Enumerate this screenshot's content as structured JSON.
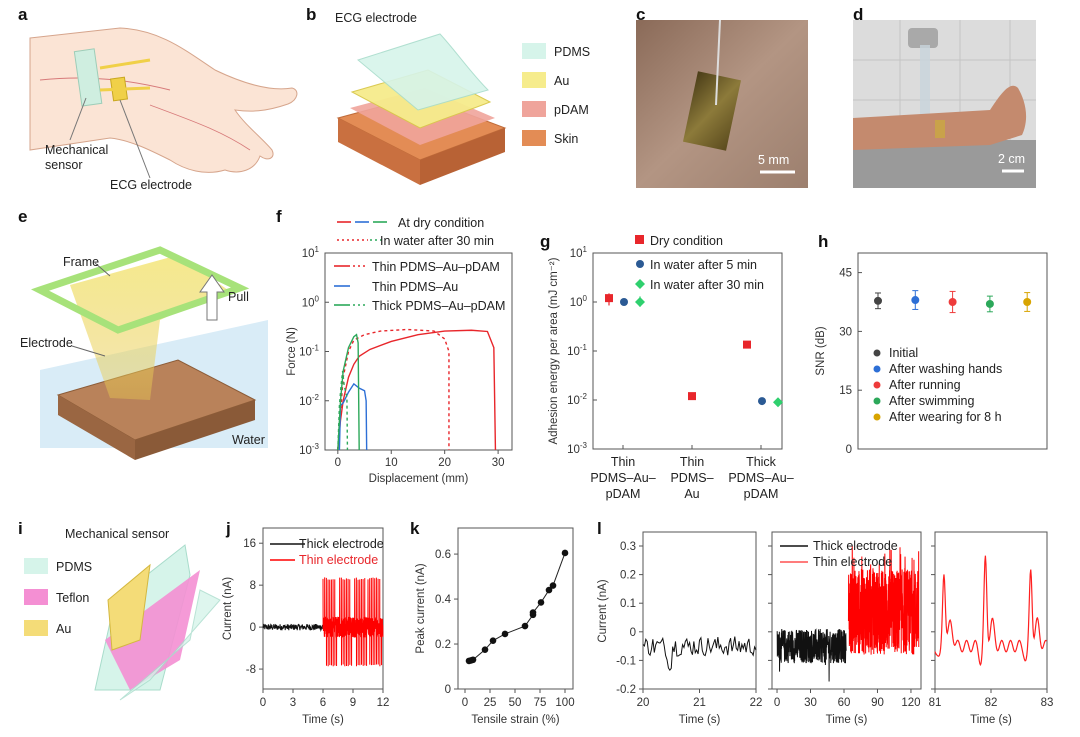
{
  "panel_labels": {
    "a": "a",
    "b": "b",
    "c": "c",
    "d": "d",
    "e": "e",
    "f": "f",
    "g": "g",
    "h": "h",
    "i": "i",
    "j": "j",
    "k": "k",
    "l": "l"
  },
  "a": {
    "sensor_line1": "Mechanical",
    "sensor_line2": "sensor",
    "ecg": "ECG electrode"
  },
  "b": {
    "title": "ECG electrode",
    "legend": [
      {
        "label": "PDMS",
        "color": "#d6f4ea"
      },
      {
        "label": "Au",
        "color": "#f6ec8c"
      },
      {
        "label": "pDAM",
        "color": "#efa49b"
      },
      {
        "label": "Skin",
        "color": "#e38c55"
      }
    ]
  },
  "c": {
    "scale": "5 mm"
  },
  "d": {
    "scale": "2 cm"
  },
  "e": {
    "frame": "Frame",
    "pull": "Pull",
    "electrode": "Electrode",
    "water": "Water"
  },
  "i": {
    "title": "Mechanical sensor",
    "legend": [
      {
        "label": "PDMS",
        "color": "#d6f4ea"
      },
      {
        "label": "Teflon",
        "color": "#f48fd3"
      },
      {
        "label": "Au",
        "color": "#f4dc78"
      }
    ]
  },
  "colors": {
    "red": "#e8262b",
    "blue": "#2d6fd6",
    "green": "#2ca85a",
    "black": "#111111"
  },
  "chart_data": [
    {
      "panel": "f",
      "type": "line",
      "xlabel": "Displacement (mm)",
      "ylabel": "Force (N)",
      "yscale": "log",
      "xlim": [
        -2.4,
        32.6
      ],
      "ylim": [
        0.001,
        10
      ],
      "xticks": [
        "0",
        "10",
        "20",
        "30"
      ],
      "xtick_values": [
        0,
        10,
        20,
        30
      ],
      "yticks": [
        {
          "base": "10",
          "exp": "-3"
        },
        {
          "base": "10",
          "exp": "-2"
        },
        {
          "base": "10",
          "exp": "-1"
        },
        {
          "base": "10",
          "exp": "0"
        },
        {
          "base": "10",
          "exp": "1"
        }
      ],
      "legend": {
        "style_dry": "At dry condition",
        "style_water": "In water after 30 min",
        "thin_au_pdam": "Thin PDMS–Au–pDAM",
        "thin_au": "Thin PDMS–Au",
        "thick_au_pdam": "Thick PDMS–Au–pDAM"
      },
      "series": [
        {
          "sample": "Thin PDMS–Au–pDAM",
          "condition": "dry",
          "color": "#e8262b",
          "dash": false,
          "points": [
            [
              0,
              0.001
            ],
            [
              0.5,
              0.004
            ],
            [
              1,
              0.01
            ],
            [
              2,
              0.03
            ],
            [
              3,
              0.055
            ],
            [
              4,
              0.08
            ],
            [
              6,
              0.11
            ],
            [
              10,
              0.16
            ],
            [
              15,
              0.22
            ],
            [
              20,
              0.26
            ],
            [
              25,
              0.27
            ],
            [
              28,
              0.255
            ],
            [
              29.2,
              0.12
            ],
            [
              29.5,
              0.001
            ]
          ]
        },
        {
          "sample": "Thin PDMS–Au–pDAM",
          "condition": "water 30 min",
          "color": "#e8262b",
          "dash": true,
          "points": [
            [
              0,
              0.001
            ],
            [
              1,
              0.03
            ],
            [
              2,
              0.1
            ],
            [
              3,
              0.17
            ],
            [
              5,
              0.22
            ],
            [
              8,
              0.26
            ],
            [
              13,
              0.28
            ],
            [
              18,
              0.26
            ],
            [
              20,
              0.18
            ],
            [
              20.8,
              0.1
            ],
            [
              20.8,
              0.001
            ]
          ]
        },
        {
          "sample": "Thin PDMS–Au",
          "condition": "dry",
          "color": "#2d6fd6",
          "dash": false,
          "points": [
            [
              0.3,
              0.001
            ],
            [
              0.5,
              0.008
            ],
            [
              1,
              0.009
            ],
            [
              2,
              0.015
            ],
            [
              3,
              0.022
            ],
            [
              4,
              0.018
            ],
            [
              5,
              0.016
            ],
            [
              5.3,
              0.01
            ],
            [
              5.4,
              0.001
            ]
          ]
        },
        {
          "sample": "Thick PDMS–Au–pDAM",
          "condition": "dry",
          "color": "#2ca85a",
          "dash": false,
          "points": [
            [
              0,
              0.001
            ],
            [
              0.5,
              0.01
            ],
            [
              1,
              0.04
            ],
            [
              2,
              0.12
            ],
            [
              3,
              0.2
            ],
            [
              3.5,
              0.22
            ],
            [
              3.8,
              0.15
            ],
            [
              4,
              0.001
            ]
          ]
        },
        {
          "sample": "Thick PDMS–Au–pDAM",
          "condition": "water 30 min",
          "color": "#2ca85a",
          "dash": true,
          "points": [
            [
              0,
              0.001
            ],
            [
              0.3,
              0.008
            ],
            [
              0.6,
              0.02
            ],
            [
              0.9,
              0.04
            ],
            [
              1.2,
              0.02
            ],
            [
              1.7,
              0.012
            ],
            [
              1.8,
              0.001
            ]
          ]
        }
      ]
    },
    {
      "panel": "g",
      "type": "scatter",
      "ylabel": "Adhesion energy per area (mJ cm⁻²)",
      "yscale": "log",
      "ylim": [
        0.001,
        10
      ],
      "yticks": [
        {
          "base": "10",
          "exp": "-3"
        },
        {
          "base": "10",
          "exp": "-2"
        },
        {
          "base": "10",
          "exp": "-1"
        },
        {
          "base": "10",
          "exp": "0"
        },
        {
          "base": "10",
          "exp": "1"
        }
      ],
      "categories": [
        [
          "Thin",
          "PDMS–Au–",
          "pDAM"
        ],
        [
          "Thin",
          "PDMS–",
          "Au"
        ],
        [
          "Thick",
          "PDMS–Au–",
          "pDAM"
        ]
      ],
      "series": [
        {
          "name": "Dry condition",
          "color": "#e8262b",
          "marker": "square",
          "values": [
            1.2,
            0.012,
            0.135
          ],
          "err_low": [
            0.85,
            0.011,
            0.12
          ],
          "err_high": [
            1.5,
            0.013,
            0.15
          ]
        },
        {
          "name": "In water after 5 min",
          "color": "#2b5a94",
          "marker": "circle",
          "values": [
            1.0,
            null,
            0.0095
          ],
          "err_low": [
            0.95,
            null,
            0.008
          ],
          "err_high": [
            1.05,
            null,
            0.011
          ]
        },
        {
          "name": "In water after 30 min",
          "color": "#2fd06e",
          "marker": "diamond",
          "values": [
            1.0,
            null,
            0.009
          ],
          "err_low": [
            0.8,
            null,
            0.0085
          ],
          "err_high": [
            1.3,
            null,
            0.0095
          ]
        }
      ]
    },
    {
      "panel": "h",
      "type": "scatter",
      "ylabel": "SNR (dB)",
      "ylim": [
        0,
        50
      ],
      "yticks": [
        "0",
        "15",
        "30",
        "45"
      ],
      "ytick_values": [
        0,
        15,
        30,
        45
      ],
      "series": [
        {
          "name": "Initial",
          "color": "#444444",
          "value": 37.8,
          "err": 2
        },
        {
          "name": "After washing hands",
          "color": "#2d6fd6",
          "value": 38,
          "err": 2.4
        },
        {
          "name": "After running",
          "color": "#ee3b3b",
          "value": 37.5,
          "err": 2.7
        },
        {
          "name": "After swimming",
          "color": "#2ca85a",
          "value": 37,
          "err": 2
        },
        {
          "name": "After wearing for 8 h",
          "color": "#d8a400",
          "value": 37.5,
          "err": 2.4
        }
      ]
    },
    {
      "panel": "j",
      "type": "line",
      "xlabel": "Time (s)",
      "ylabel": "Current (nA)",
      "xlim": [
        0,
        12
      ],
      "ylim": [
        -11.8,
        18.9
      ],
      "xticks": [
        "0",
        "3",
        "6",
        "9",
        "12"
      ],
      "xtick_values": [
        0,
        3,
        6,
        9,
        12
      ],
      "yticks": [
        "-8",
        "0",
        "8",
        "16"
      ],
      "ytick_values": [
        -8,
        0,
        8,
        16
      ],
      "series": [
        {
          "name": "Thick electrode",
          "color": "#111111",
          "t_range": [
            0,
            6
          ],
          "amplitude": [
            -0.6,
            0.6
          ]
        },
        {
          "name": "Thin electrode",
          "color": "#ff0000",
          "t_range": [
            6,
            12
          ],
          "peak_max": 9.5,
          "peak_min": -7.5,
          "band": [
            -2,
            2
          ],
          "pulse_rate_hz": 6
        }
      ]
    },
    {
      "panel": "k",
      "type": "line",
      "xlabel": "Tensile strain (%)",
      "ylabel": "Peak current (nA)",
      "xlim": [
        -7,
        108
      ],
      "ylim": [
        0,
        0.716
      ],
      "xticks": [
        "0",
        "25",
        "50",
        "75",
        "100"
      ],
      "xtick_values": [
        0,
        25,
        50,
        75,
        100
      ],
      "yticks": [
        "0",
        "0.2",
        "0.4",
        "0.6"
      ],
      "ytick_values": [
        0,
        0.2,
        0.4,
        0.6
      ],
      "x": [
        4,
        6,
        8,
        20,
        28,
        40,
        60,
        68,
        68,
        76,
        84,
        88,
        100
      ],
      "y": [
        0.125,
        0.127,
        0.13,
        0.175,
        0.215,
        0.245,
        0.28,
        0.33,
        0.34,
        0.385,
        0.44,
        0.46,
        0.605
      ]
    },
    {
      "panel": "l",
      "type": "line",
      "ylabel": "Current (nA)",
      "ylim": [
        -0.2,
        0.349
      ],
      "yticks": [
        "-0.2",
        "-0.1",
        "0",
        "0.1",
        "0.2",
        "0.3"
      ],
      "ytick_values": [
        -0.2,
        -0.1,
        0,
        0.1,
        0.2,
        0.3
      ],
      "subplots": [
        {
          "xlabel": "Time (s)",
          "xlim": [
            20,
            22
          ],
          "xticks": [
            "20",
            "21",
            "22"
          ],
          "xtick_values": [
            20,
            21,
            22
          ],
          "series": [
            {
              "color": "#111111",
              "mean": -0.05,
              "range": [
                -0.12,
                -0.01
              ]
            }
          ]
        },
        {
          "xlabel": "Time (s)",
          "xlim": [
            -4.5,
            129
          ],
          "xticks": [
            "0",
            "30",
            "60",
            "90",
            "120"
          ],
          "xtick_values": [
            0,
            30,
            60,
            90,
            120
          ],
          "legend": [
            "Thick electrode",
            "Thin electrode"
          ],
          "series": [
            {
              "name": "Thick electrode",
              "color": "#111111",
              "t_range": [
                0,
                62
              ],
              "range": [
                -0.16,
                0.07
              ]
            },
            {
              "name": "Thin electrode",
              "color": "#ff0000",
              "t_range": [
                64,
                127
              ],
              "range": [
                -0.13,
                0.3
              ]
            }
          ]
        },
        {
          "xlabel": "Time (s)",
          "xlim": [
            81,
            83
          ],
          "xticks": [
            "81",
            "82",
            "83"
          ],
          "xtick_values": [
            81,
            82,
            83
          ],
          "series": [
            {
              "color": "#ff2020",
              "peaks": [
                [
                  81.16,
                  0.22
                ],
                [
                  81.9,
                  0.255
                ],
                [
                  82.71,
                  0.225
                ]
              ],
              "baseline": -0.05
            }
          ]
        }
      ]
    }
  ]
}
